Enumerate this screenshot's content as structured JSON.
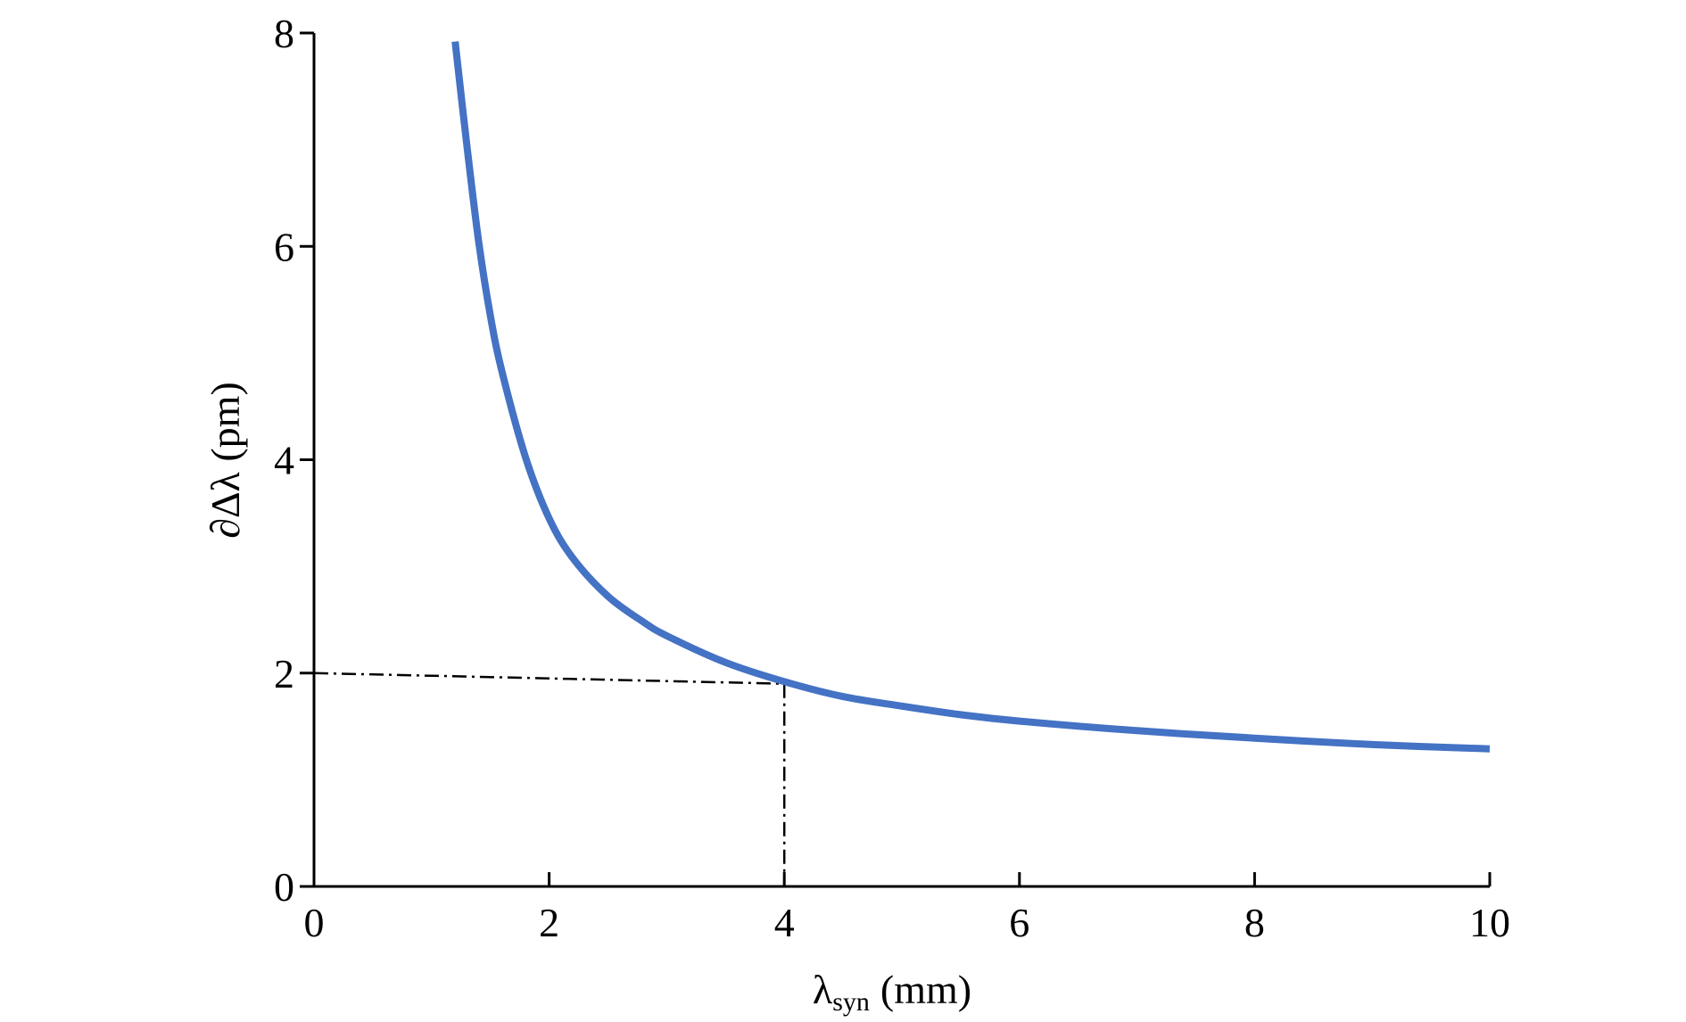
{
  "chart_data": {
    "type": "line",
    "xlabel": "λ",
    "xlabel_sub": "syn",
    "xlabel_unit": "(mm)",
    "ylabel": "∂Δλ (pm)",
    "xlim": [
      0,
      10
    ],
    "ylim": [
      0,
      8
    ],
    "xticks": [
      0,
      2,
      4,
      6,
      8,
      10
    ],
    "yticks": [
      0,
      2,
      4,
      6,
      8
    ],
    "grid": false,
    "series": [
      {
        "color": "#4472C4",
        "x": [
          1.2,
          1.3,
          1.4,
          1.5,
          1.6,
          1.8,
          2.0,
          2.2,
          2.5,
          2.8,
          3.0,
          3.5,
          4.0,
          4.5,
          5.0,
          5.5,
          6.0,
          7.0,
          8.0,
          9.0,
          10.0
        ],
        "y": [
          7.92,
          6.95,
          6.05,
          5.35,
          4.82,
          4.02,
          3.45,
          3.08,
          2.72,
          2.48,
          2.35,
          2.1,
          1.92,
          1.78,
          1.69,
          1.61,
          1.55,
          1.46,
          1.39,
          1.33,
          1.29
        ]
      }
    ],
    "reference_lines": [
      {
        "style": "dash-dot",
        "color": "#000000",
        "from": [
          0,
          2.0
        ],
        "to": [
          4,
          1.9
        ]
      },
      {
        "style": "dash-dot",
        "color": "#000000",
        "from": [
          4,
          1.9
        ],
        "to": [
          4,
          0
        ]
      }
    ]
  }
}
